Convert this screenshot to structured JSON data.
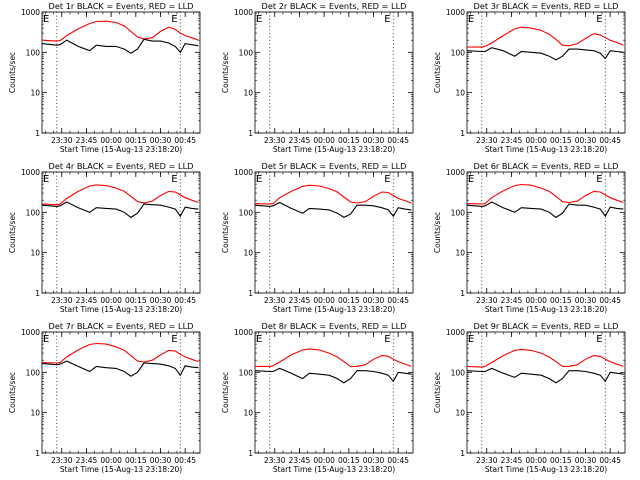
{
  "figure": {
    "background": "#ffffff",
    "axis_color": "#000000",
    "events_color": "#000000",
    "lld_color": "#ff0000"
  },
  "chart_data": [
    {
      "type": "line",
      "title": "Det 1r BLACK = Events, RED = LLD",
      "xlabel": "Start Time (15-Aug-13 23:18:20)",
      "ylabel": "Counts/sec",
      "y_scale": "log",
      "ylim": [
        1,
        1000
      ],
      "yticks": [
        "1",
        "10",
        "100",
        "1000"
      ],
      "xticks": [
        "23:30",
        "23:45",
        "00:00",
        "00:15",
        "00:30",
        "00:45"
      ],
      "markers": [
        "E",
        "E"
      ],
      "x": [
        "23:18",
        "23:27",
        "23:29",
        "23:33",
        "23:40",
        "23:47",
        "23:51",
        "23:57",
        "00:03",
        "00:08",
        "00:12",
        "00:16",
        "00:20",
        "00:25",
        "00:30",
        "00:35",
        "00:39",
        "00:42",
        "00:45",
        "00:49",
        "00:53"
      ],
      "series": [
        {
          "name": "LLD",
          "values": [
            200,
            190,
            195,
            260,
            380,
            520,
            580,
            590,
            550,
            450,
            330,
            240,
            215,
            230,
            330,
            420,
            370,
            300,
            260,
            230,
            200
          ]
        },
        {
          "name": "Events",
          "values": [
            165,
            150,
            155,
            200,
            140,
            110,
            150,
            140,
            140,
            120,
            95,
            120,
            210,
            190,
            190,
            170,
            140,
            100,
            165,
            155,
            145
          ]
        }
      ]
    },
    {
      "type": "line",
      "title": "Det 2r BLACK = Events, RED = LLD",
      "xlabel": "Start Time (15-Aug-13 23:18:20)",
      "ylabel": "Counts/sec",
      "y_scale": "log",
      "ylim": [
        1,
        1000
      ],
      "yticks": [
        "1",
        "10",
        "100",
        "1000"
      ],
      "xticks": [
        "23:30",
        "23:45",
        "00:00",
        "00:15",
        "00:30",
        "00:45"
      ],
      "markers": [
        "E",
        "E"
      ],
      "x": [],
      "series": []
    },
    {
      "type": "line",
      "title": "Det 3r BLACK = Events, RED = LLD",
      "xlabel": "Start Time (15-Aug-13 23:18:20)",
      "ylabel": "Counts/sec",
      "y_scale": "log",
      "ylim": [
        1,
        1000
      ],
      "yticks": [
        "1",
        "10",
        "100",
        "1000"
      ],
      "xticks": [
        "23:30",
        "23:45",
        "00:00",
        "00:15",
        "00:30",
        "00:45"
      ],
      "markers": [
        "E",
        "E"
      ],
      "x": [
        "23:18",
        "23:27",
        "23:29",
        "23:33",
        "23:40",
        "23:47",
        "23:51",
        "23:57",
        "00:03",
        "00:08",
        "00:12",
        "00:16",
        "00:20",
        "00:25",
        "00:30",
        "00:35",
        "00:39",
        "00:42",
        "00:45",
        "00:49",
        "00:53"
      ],
      "series": [
        {
          "name": "LLD",
          "values": [
            135,
            135,
            140,
            170,
            260,
            380,
            420,
            400,
            350,
            280,
            210,
            150,
            145,
            165,
            220,
            290,
            270,
            230,
            200,
            175,
            150
          ]
        },
        {
          "name": "Events",
          "values": [
            110,
            105,
            105,
            130,
            110,
            80,
            105,
            100,
            95,
            80,
            65,
            80,
            120,
            120,
            115,
            110,
            95,
            70,
            110,
            105,
            100
          ]
        }
      ]
    },
    {
      "type": "line",
      "title": "Det 4r BLACK = Events, RED = LLD",
      "xlabel": "Start Time (15-Aug-13 23:18:20)",
      "ylabel": "Counts/sec",
      "y_scale": "log",
      "ylim": [
        1,
        1000
      ],
      "yticks": [
        "1",
        "10",
        "100",
        "1000"
      ],
      "xticks": [
        "23:30",
        "23:45",
        "00:00",
        "00:15",
        "00:30",
        "00:45"
      ],
      "markers": [
        "E",
        "E"
      ],
      "x": [
        "23:18",
        "23:27",
        "23:29",
        "23:33",
        "23:40",
        "23:47",
        "23:51",
        "23:57",
        "00:03",
        "00:08",
        "00:12",
        "00:16",
        "00:20",
        "00:25",
        "00:30",
        "00:35",
        "00:39",
        "00:42",
        "00:45",
        "00:49",
        "00:53"
      ],
      "series": [
        {
          "name": "LLD",
          "values": [
            160,
            155,
            160,
            220,
            330,
            450,
            480,
            460,
            400,
            330,
            250,
            185,
            170,
            190,
            260,
            330,
            320,
            270,
            230,
            200,
            175
          ]
        },
        {
          "name": "Events",
          "values": [
            150,
            140,
            145,
            180,
            130,
            100,
            130,
            125,
            120,
            100,
            75,
            95,
            160,
            155,
            150,
            135,
            120,
            80,
            135,
            125,
            120
          ]
        }
      ]
    },
    {
      "type": "line",
      "title": "Det 5r BLACK = Events, RED = LLD",
      "xlabel": "Start Time (15-Aug-13 23:18:20)",
      "ylabel": "Counts/sec",
      "y_scale": "log",
      "ylim": [
        1,
        1000
      ],
      "yticks": [
        "1",
        "10",
        "100",
        "1000"
      ],
      "xticks": [
        "23:30",
        "23:45",
        "00:00",
        "00:15",
        "00:30",
        "00:45"
      ],
      "markers": [
        "E",
        "E"
      ],
      "x": [
        "23:18",
        "23:27",
        "23:29",
        "23:33",
        "23:40",
        "23:47",
        "23:51",
        "23:57",
        "00:03",
        "00:08",
        "00:12",
        "00:16",
        "00:20",
        "00:25",
        "00:30",
        "00:35",
        "00:39",
        "00:42",
        "00:45",
        "00:49",
        "00:53"
      ],
      "series": [
        {
          "name": "LLD",
          "values": [
            165,
            160,
            165,
            230,
            330,
            440,
            470,
            450,
            390,
            320,
            240,
            180,
            170,
            185,
            250,
            320,
            310,
            260,
            220,
            195,
            170
          ]
        },
        {
          "name": "Events",
          "values": [
            150,
            140,
            145,
            175,
            125,
            95,
            125,
            120,
            115,
            95,
            75,
            90,
            150,
            150,
            145,
            130,
            115,
            80,
            130,
            120,
            115
          ]
        }
      ]
    },
    {
      "type": "line",
      "title": "Det 6r BLACK = Events, RED = LLD",
      "xlabel": "Start Time (15-Aug-13 23:18:20)",
      "ylabel": "Counts/sec",
      "y_scale": "log",
      "ylim": [
        1,
        1000
      ],
      "yticks": [
        "1",
        "10",
        "100",
        "1000"
      ],
      "xticks": [
        "23:30",
        "23:45",
        "00:00",
        "00:15",
        "00:30",
        "00:45"
      ],
      "markers": [
        "E",
        "E"
      ],
      "x": [
        "23:18",
        "23:27",
        "23:29",
        "23:33",
        "23:40",
        "23:47",
        "23:51",
        "23:57",
        "00:03",
        "00:08",
        "00:12",
        "00:16",
        "00:20",
        "00:25",
        "00:30",
        "00:35",
        "00:39",
        "00:42",
        "00:45",
        "00:49",
        "00:53"
      ],
      "series": [
        {
          "name": "LLD",
          "values": [
            165,
            160,
            165,
            230,
            340,
            460,
            490,
            470,
            400,
            330,
            250,
            185,
            175,
            190,
            260,
            330,
            320,
            270,
            230,
            200,
            175
          ]
        },
        {
          "name": "Events",
          "values": [
            150,
            140,
            145,
            180,
            130,
            100,
            130,
            125,
            120,
            100,
            75,
            95,
            160,
            150,
            150,
            135,
            120,
            80,
            135,
            125,
            120
          ]
        }
      ]
    },
    {
      "type": "line",
      "title": "Det 7r BLACK = Events, RED = LLD",
      "xlabel": "Start Time (15-Aug-13 23:18:20)",
      "ylabel": "Counts/sec",
      "y_scale": "log",
      "ylim": [
        1,
        1000
      ],
      "yticks": [
        "1",
        "10",
        "100",
        "1000"
      ],
      "xticks": [
        "23:30",
        "23:45",
        "00:00",
        "00:15",
        "00:30",
        "00:45"
      ],
      "markers": [
        "E",
        "E"
      ],
      "x": [
        "23:18",
        "23:27",
        "23:29",
        "23:33",
        "23:40",
        "23:47",
        "23:51",
        "23:57",
        "00:03",
        "00:08",
        "00:12",
        "00:16",
        "00:20",
        "00:25",
        "00:30",
        "00:35",
        "00:39",
        "00:42",
        "00:45",
        "00:49",
        "00:53"
      ],
      "series": [
        {
          "name": "LLD",
          "values": [
            175,
            170,
            175,
            240,
            360,
            490,
            520,
            500,
            430,
            350,
            260,
            190,
            180,
            200,
            270,
            350,
            340,
            280,
            240,
            210,
            185
          ]
        },
        {
          "name": "Events",
          "values": [
            165,
            155,
            160,
            190,
            140,
            105,
            140,
            130,
            125,
            105,
            80,
            100,
            170,
            165,
            160,
            145,
            125,
            85,
            145,
            135,
            130
          ]
        }
      ]
    },
    {
      "type": "line",
      "title": "Det 8r BLACK = Events, RED = LLD",
      "xlabel": "Start Time (15-Aug-13 23:18:20)",
      "ylabel": "Counts/sec",
      "y_scale": "log",
      "ylim": [
        1,
        1000
      ],
      "yticks": [
        "1",
        "10",
        "100",
        "1000"
      ],
      "xticks": [
        "23:30",
        "23:45",
        "00:00",
        "00:15",
        "00:30",
        "00:45"
      ],
      "markers": [
        "E",
        "E"
      ],
      "x": [
        "23:18",
        "23:27",
        "23:29",
        "23:33",
        "23:40",
        "23:47",
        "23:51",
        "23:57",
        "00:03",
        "00:08",
        "00:12",
        "00:16",
        "00:20",
        "00:25",
        "00:30",
        "00:35",
        "00:39",
        "00:42",
        "00:45",
        "00:49",
        "00:53"
      ],
      "series": [
        {
          "name": "LLD",
          "values": [
            140,
            140,
            145,
            180,
            270,
            360,
            380,
            360,
            300,
            240,
            185,
            140,
            140,
            155,
            210,
            260,
            250,
            210,
            185,
            160,
            140
          ]
        },
        {
          "name": "Events",
          "values": [
            110,
            105,
            105,
            125,
            95,
            70,
            95,
            90,
            85,
            70,
            55,
            70,
            110,
            110,
            105,
            95,
            85,
            60,
            100,
            95,
            90
          ]
        }
      ]
    },
    {
      "type": "line",
      "title": "Det 9r BLACK = Events, RED = LLD",
      "xlabel": "Start Time (15-Aug-13 23:18:20)",
      "ylabel": "Counts/sec",
      "y_scale": "log",
      "ylim": [
        1,
        1000
      ],
      "yticks": [
        "1",
        "10",
        "100",
        "1000"
      ],
      "xticks": [
        "23:30",
        "23:45",
        "00:00",
        "00:15",
        "00:30",
        "00:45"
      ],
      "markers": [
        "E",
        "E"
      ],
      "x": [
        "23:18",
        "23:27",
        "23:29",
        "23:33",
        "23:40",
        "23:47",
        "23:51",
        "23:57",
        "00:03",
        "00:08",
        "00:12",
        "00:16",
        "00:20",
        "00:25",
        "00:30",
        "00:35",
        "00:39",
        "00:42",
        "00:45",
        "00:49",
        "00:53"
      ],
      "series": [
        {
          "name": "LLD",
          "values": [
            140,
            135,
            140,
            175,
            260,
            350,
            370,
            350,
            300,
            240,
            185,
            140,
            140,
            155,
            210,
            260,
            250,
            210,
            185,
            160,
            140
          ]
        },
        {
          "name": "Events",
          "values": [
            110,
            105,
            105,
            125,
            95,
            75,
            95,
            90,
            85,
            70,
            55,
            70,
            110,
            110,
            105,
            95,
            85,
            60,
            100,
            95,
            90
          ]
        }
      ]
    }
  ]
}
